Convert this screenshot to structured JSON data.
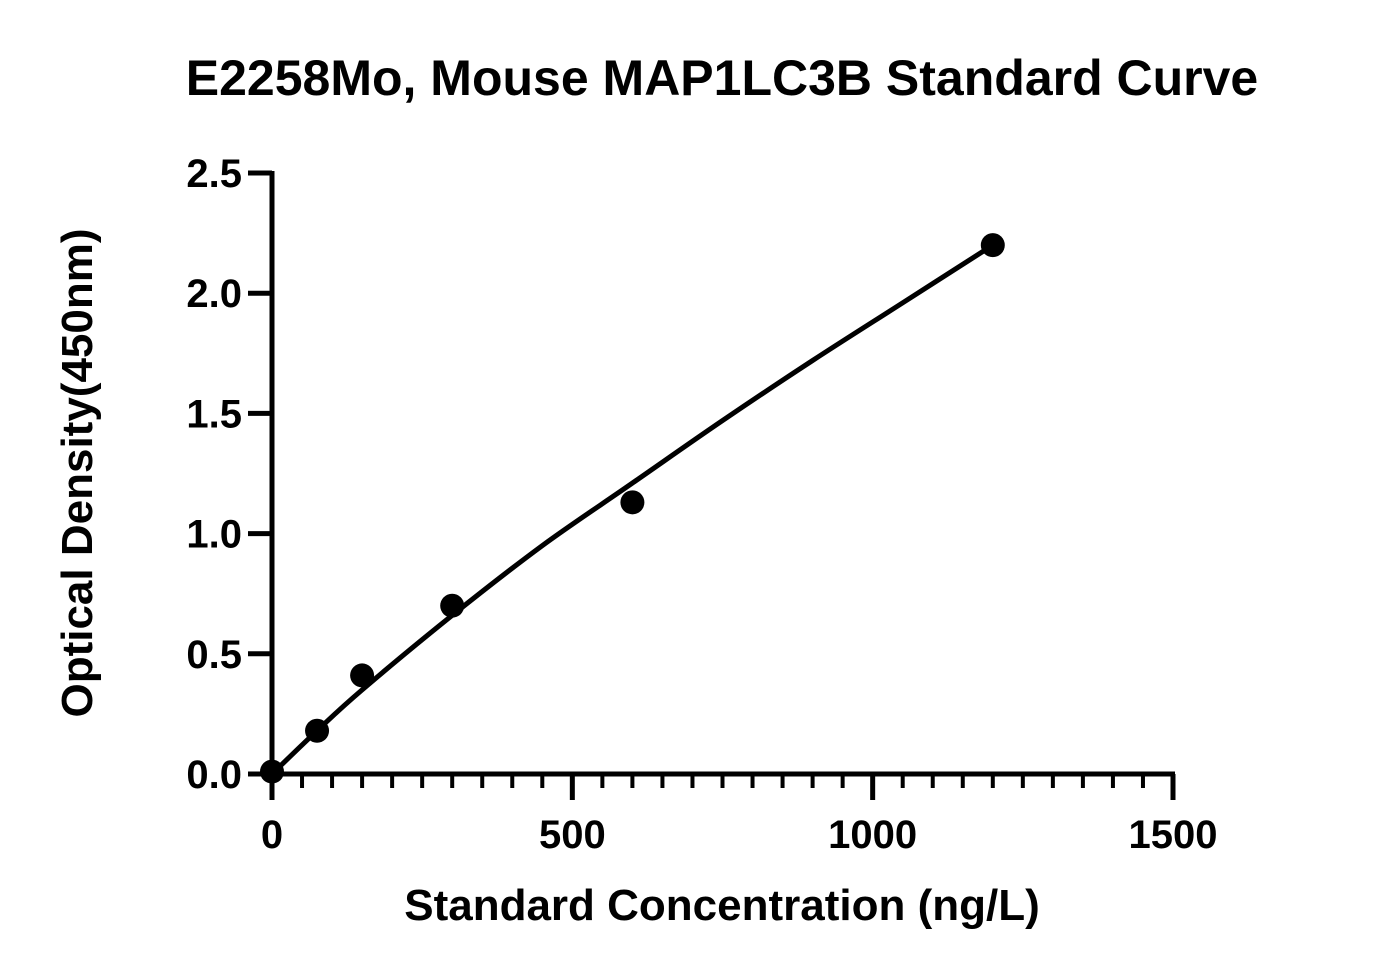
{
  "chart_data": {
    "type": "scatter",
    "title": "E2258Mo, Mouse MAP1LC3B Standard Curve",
    "xlabel": "Standard Concentration (ng/L)",
    "ylabel": "Optical Density(450nm)",
    "xlim": [
      0,
      1500
    ],
    "ylim": [
      0,
      2.5
    ],
    "x_ticks": [
      "0",
      "500",
      "1000",
      "1500"
    ],
    "y_ticks": [
      "0.0",
      "0.5",
      "1.0",
      "1.5",
      "2.0",
      "2.5"
    ],
    "x_minor_step": 50,
    "grid": false,
    "legend": "none",
    "series": [
      {
        "points": [
          {
            "x": 0,
            "y": 0.01
          },
          {
            "x": 75,
            "y": 0.18
          },
          {
            "x": 150,
            "y": 0.41
          },
          {
            "x": 300,
            "y": 0.7
          },
          {
            "x": 600,
            "y": 1.13
          },
          {
            "x": 1200,
            "y": 2.2
          }
        ],
        "fit_curve": [
          {
            "x": 0,
            "y": 0.0
          },
          {
            "x": 75,
            "y": 0.18
          },
          {
            "x": 150,
            "y": 0.35
          },
          {
            "x": 300,
            "y": 0.66
          },
          {
            "x": 450,
            "y": 0.95
          },
          {
            "x": 600,
            "y": 1.21
          },
          {
            "x": 750,
            "y": 1.47
          },
          {
            "x": 900,
            "y": 1.72
          },
          {
            "x": 1050,
            "y": 1.96
          },
          {
            "x": 1200,
            "y": 2.2
          }
        ]
      }
    ],
    "colors": {
      "marks": "#000000",
      "background": "#ffffff"
    }
  }
}
